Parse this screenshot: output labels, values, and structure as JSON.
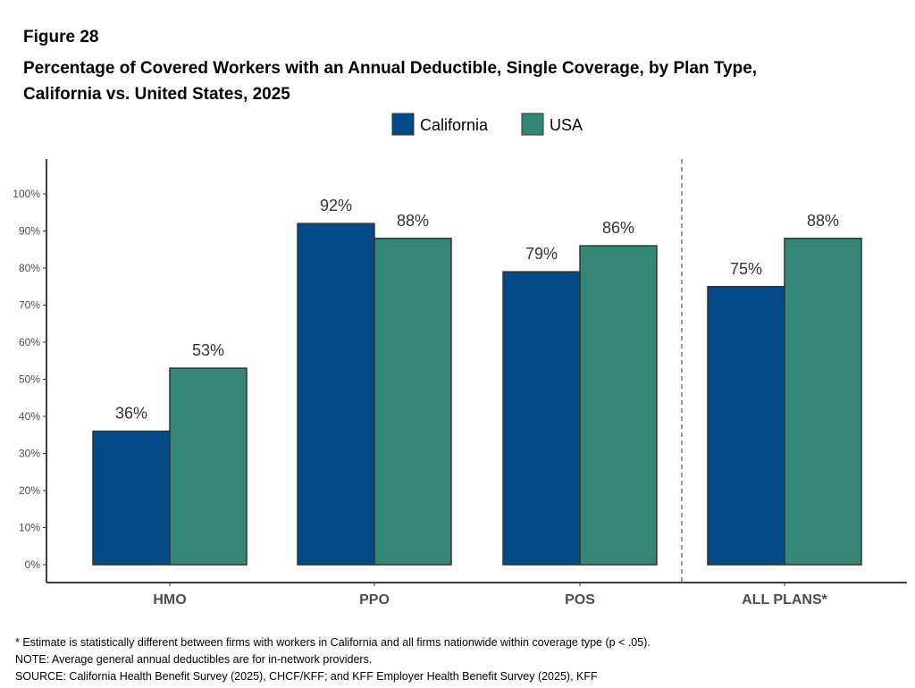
{
  "figure_label": "Figure 28",
  "chart_data": {
    "type": "bar",
    "title_lines": [
      "Percentage of Covered Workers with an Annual Deductible, Single Coverage, by Plan Type,",
      "California vs. United States, 2025"
    ],
    "categories": [
      "HMO",
      "PPO",
      "POS",
      "ALL PLANS*"
    ],
    "series": [
      {
        "name": "California",
        "color": "#004a87",
        "values": [
          36,
          92,
          79,
          75
        ],
        "labels": [
          "36%",
          "92%",
          "79%",
          "75%"
        ]
      },
      {
        "name": "USA",
        "color": "#358775",
        "values": [
          53,
          88,
          86,
          88
        ],
        "labels": [
          "53%",
          "88%",
          "86%",
          "88%"
        ]
      }
    ],
    "ylim": [
      0,
      100
    ],
    "yticks": [
      "0%",
      "10%",
      "20%",
      "30%",
      "40%",
      "50%",
      "60%",
      "70%",
      "80%",
      "90%",
      "100%"
    ],
    "grid": false,
    "legend_position": "top",
    "separator": "dashed vertical line before ALL PLANS*",
    "separator_color": "#8a6a9a"
  },
  "notes": [
    "* Estimate is statistically different between firms with workers in California and all firms nationwide within coverage type (p < .05).",
    "NOTE: Average general annual deductibles are for in-network providers.",
    "SOURCE: California Health Benefit Survey (2025), CHCF/KFF; and KFF Employer Health Benefit Survey (2025), KFF"
  ]
}
